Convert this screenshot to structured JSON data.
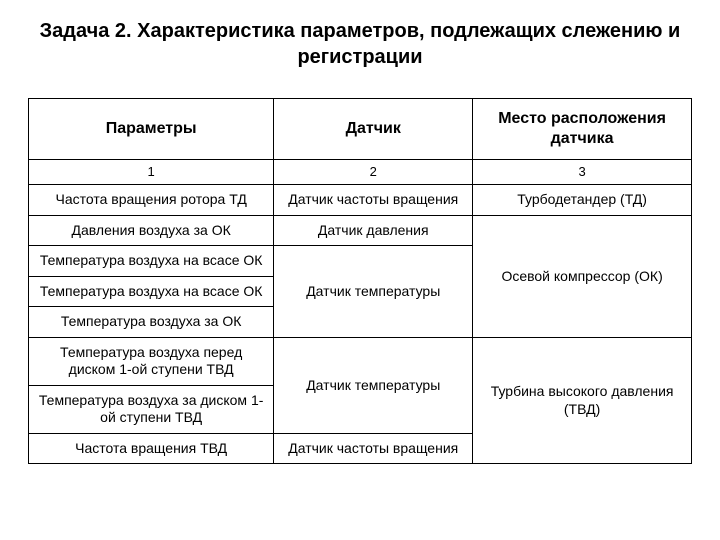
{
  "title": "Задача 2. Характеристика параметров, подлежащих слежению и регистрации",
  "headers": {
    "col1": "Параметры",
    "col2": "Датчик",
    "col3": "Место расположения датчика"
  },
  "numbers": {
    "c1": "1",
    "c2": "2",
    "c3": "3"
  },
  "rows": {
    "r1p": "Частота вращения ротора ТД",
    "r1s": "Датчик частоты вращения",
    "r1l": "Турбодетандер (ТД)",
    "r2p": "Давления воздуха за ОК",
    "r2s": "Датчик давления",
    "r3p": "Температура воздуха на всасе ОК",
    "r4p": "Температура воздуха на всасе ОК",
    "r4s": "Датчик температуры",
    "r4l": "Осевой компрессор (ОК)",
    "r5p": "Температура воздуха за ОК",
    "r6p": "Температура воздуха перед диском 1-ой ступени ТВД",
    "r6s": "Датчик температуры",
    "r6l": "Турбина высокого давления (ТВД)",
    "r7p": "Температура воздуха за диском 1-ой ступени ТВД",
    "r8p": "Частота вращения ТВД",
    "r8s": "Датчик частоты вращения"
  }
}
